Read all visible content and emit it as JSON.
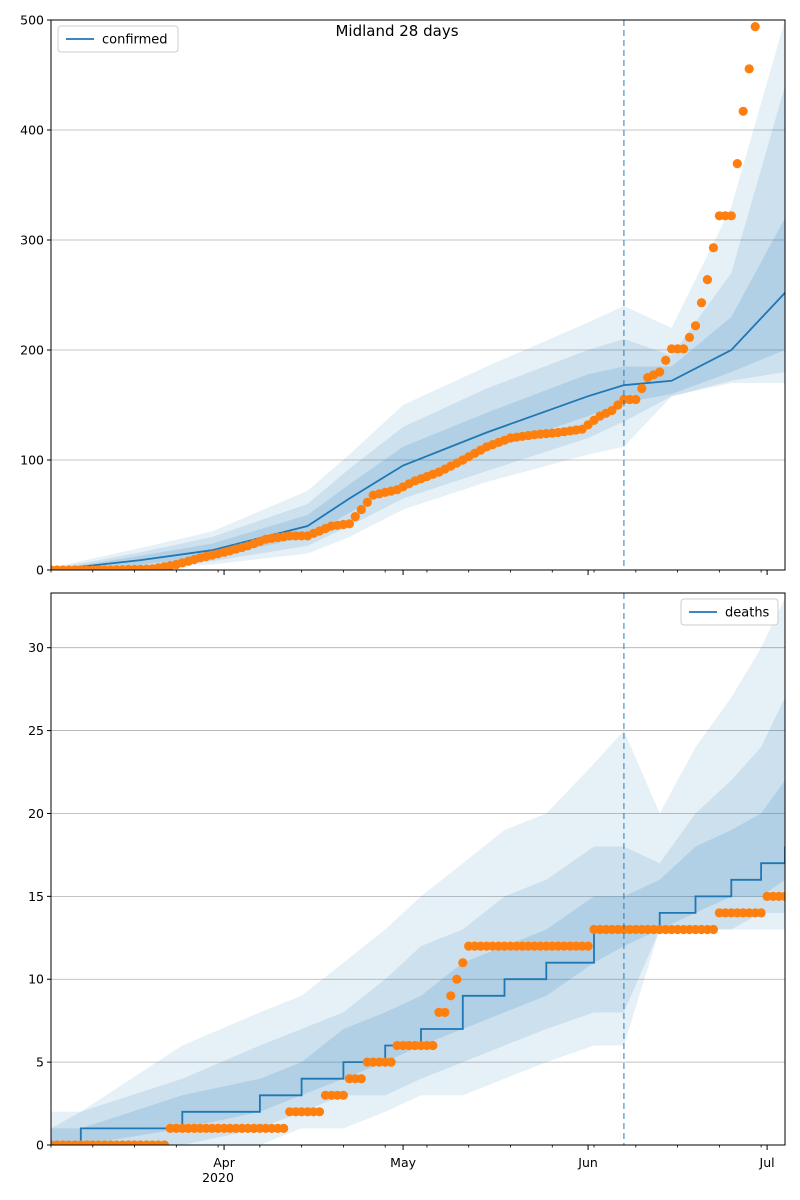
{
  "colors": {
    "line": "#1f77b4",
    "points": "#ff7f0e",
    "band": "#1f77b4",
    "grid": "#b0b0b0"
  },
  "x_axis": {
    "month_ticks": [
      "Apr",
      "May",
      "Jun",
      "Jul"
    ],
    "year_label": "2020"
  },
  "chart_data": [
    {
      "type": "line",
      "title": "Midland 28 days",
      "legend": [
        "confirmed"
      ],
      "legend_position": "upper-left",
      "grid": "horizontal",
      "ylim": [
        0,
        500
      ],
      "yticks": [
        0,
        100,
        200,
        300,
        400,
        500
      ],
      "x_range": [
        "2020-03-03",
        "2020-07-04"
      ],
      "forecast_start": "2020-06-07",
      "projection": {
        "dates": [
          "2020-03-03",
          "2020-03-18",
          "2020-03-30",
          "2020-04-15",
          "2020-04-22",
          "2020-05-01",
          "2020-05-15",
          "2020-06-01",
          "2020-06-07",
          "2020-06-15",
          "2020-06-25",
          "2020-07-04"
        ],
        "median": [
          0,
          9,
          18,
          40,
          65,
          95,
          125,
          158,
          168,
          172,
          200,
          252
        ],
        "band_50": [
          [
            0,
            0
          ],
          [
            5,
            13
          ],
          [
            12,
            24
          ],
          [
            30,
            50
          ],
          [
            52,
            78
          ],
          [
            80,
            112
          ],
          [
            108,
            143
          ],
          [
            140,
            178
          ],
          [
            152,
            185
          ],
          [
            160,
            185
          ],
          [
            180,
            230
          ],
          [
            200,
            320
          ]
        ],
        "band_80": [
          [
            0,
            1
          ],
          [
            3,
            16
          ],
          [
            8,
            30
          ],
          [
            22,
            60
          ],
          [
            40,
            92
          ],
          [
            65,
            130
          ],
          [
            90,
            165
          ],
          [
            120,
            200
          ],
          [
            135,
            210
          ],
          [
            158,
            195
          ],
          [
            172,
            270
          ],
          [
            180,
            440
          ]
        ],
        "band_95": [
          [
            0,
            2
          ],
          [
            2,
            20
          ],
          [
            5,
            35
          ],
          [
            15,
            72
          ],
          [
            30,
            105
          ],
          [
            55,
            150
          ],
          [
            80,
            185
          ],
          [
            105,
            225
          ],
          [
            112,
            240
          ],
          [
            158,
            220
          ],
          [
            170,
            330
          ],
          [
            170,
            500
          ]
        ]
      },
      "observed": {
        "dates": [
          "2020-03-03",
          "2020-03-13",
          "2020-03-20",
          "2020-03-24",
          "2020-03-28",
          "2020-04-01",
          "2020-04-05",
          "2020-04-08",
          "2020-04-12",
          "2020-04-15",
          "2020-04-19",
          "2020-04-22",
          "2020-04-26",
          "2020-04-30",
          "2020-05-03",
          "2020-05-07",
          "2020-05-11",
          "2020-05-15",
          "2020-05-19",
          "2020-05-23",
          "2020-05-27",
          "2020-05-31",
          "2020-06-03",
          "2020-06-05",
          "2020-06-07",
          "2020-06-09",
          "2020-06-11",
          "2020-06-13",
          "2020-06-15",
          "2020-06-17",
          "2020-06-19",
          "2020-06-21",
          "2020-06-23",
          "2020-06-25",
          "2020-06-27",
          "2020-06-29"
        ],
        "values": [
          0,
          0,
          1,
          5,
          11,
          16,
          22,
          28,
          31,
          31,
          40,
          42,
          68,
          73,
          81,
          89,
          100,
          112,
          120,
          123,
          125,
          128,
          140,
          145,
          155,
          155,
          175,
          180,
          201,
          201,
          222,
          264,
          322,
          322,
          417,
          494
        ]
      }
    },
    {
      "type": "line",
      "title": "",
      "legend": [
        "deaths"
      ],
      "legend_position": "upper-right",
      "grid": "horizontal",
      "ylim": [
        0,
        33.3
      ],
      "yticks": [
        0,
        5,
        10,
        15,
        20,
        25,
        30
      ],
      "x_range": [
        "2020-03-03",
        "2020-07-04"
      ],
      "forecast_start": "2020-06-07",
      "projection": {
        "dates": [
          "2020-03-03",
          "2020-03-08",
          "2020-03-25",
          "2020-04-07",
          "2020-04-14",
          "2020-04-21",
          "2020-04-28",
          "2020-05-04",
          "2020-05-11",
          "2020-05-18",
          "2020-05-25",
          "2020-06-02",
          "2020-06-07",
          "2020-06-13",
          "2020-06-19",
          "2020-06-25",
          "2020-06-30",
          "2020-07-04"
        ],
        "median": [
          0,
          1,
          2,
          3,
          4,
          5,
          6,
          7,
          9,
          10,
          11,
          13,
          13,
          14,
          15,
          16,
          17,
          18
        ],
        "band_50": [
          [
            0,
            1
          ],
          [
            0,
            1
          ],
          [
            1,
            3
          ],
          [
            2,
            4
          ],
          [
            3,
            5
          ],
          [
            4,
            7
          ],
          [
            5,
            8
          ],
          [
            6,
            9
          ],
          [
            7,
            11
          ],
          [
            8,
            12
          ],
          [
            9,
            13
          ],
          [
            11,
            15
          ],
          [
            12,
            15
          ],
          [
            13,
            16
          ],
          [
            14,
            18
          ],
          [
            15,
            19
          ],
          [
            15,
            20
          ],
          [
            16,
            22
          ]
        ],
        "band_80": [
          [
            0,
            1
          ],
          [
            0,
            2
          ],
          [
            0,
            4
          ],
          [
            1,
            6
          ],
          [
            2,
            7
          ],
          [
            3,
            8
          ],
          [
            3,
            10
          ],
          [
            4,
            12
          ],
          [
            5,
            13
          ],
          [
            6,
            15
          ],
          [
            7,
            16
          ],
          [
            8,
            18
          ],
          [
            8,
            18
          ],
          [
            13,
            17
          ],
          [
            13,
            20
          ],
          [
            13,
            22
          ],
          [
            14,
            24
          ],
          [
            14,
            27
          ]
        ],
        "band_95": [
          [
            0,
            2
          ],
          [
            0,
            2
          ],
          [
            0,
            6
          ],
          [
            0,
            8
          ],
          [
            1,
            9
          ],
          [
            1,
            11
          ],
          [
            2,
            13
          ],
          [
            3,
            15
          ],
          [
            3,
            17
          ],
          [
            4,
            19
          ],
          [
            5,
            20
          ],
          [
            6,
            23
          ],
          [
            6,
            25
          ],
          [
            13,
            20
          ],
          [
            13,
            24
          ],
          [
            13,
            27
          ],
          [
            13,
            30
          ],
          [
            13,
            33
          ]
        ]
      },
      "observed": {
        "dates": [
          "2020-03-03",
          "2020-03-22",
          "2020-03-23",
          "2020-04-11",
          "2020-04-12",
          "2020-04-17",
          "2020-04-18",
          "2020-04-21",
          "2020-04-22",
          "2020-04-24",
          "2020-04-25",
          "2020-04-29",
          "2020-04-30",
          "2020-05-06",
          "2020-05-07",
          "2020-05-08",
          "2020-05-09",
          "2020-05-10",
          "2020-05-11",
          "2020-05-12",
          "2020-06-01",
          "2020-06-02",
          "2020-06-22",
          "2020-06-23",
          "2020-06-30",
          "2020-07-01",
          "2020-07-04"
        ],
        "values": [
          0,
          0,
          1,
          1,
          2,
          2,
          3,
          3,
          4,
          4,
          5,
          5,
          6,
          6,
          8,
          8,
          9,
          10,
          11,
          12,
          12,
          13,
          13,
          14,
          14,
          15,
          15
        ]
      }
    }
  ]
}
